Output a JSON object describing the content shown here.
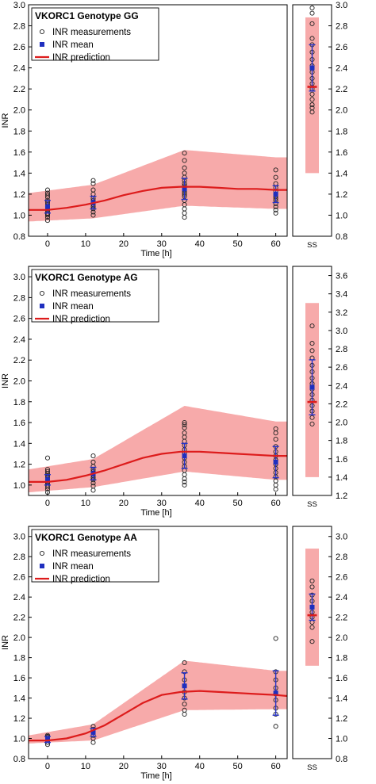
{
  "colors": {
    "band": "#f7aaaa",
    "prediction": "#dd1c1c",
    "mean": "#1f2fbf",
    "measurement": "#222222",
    "errorbar": "#2633c8",
    "axis": "#000000"
  },
  "legend": {
    "measurements": "INR measurements",
    "mean": "INR mean",
    "prediction": "INR prediction"
  },
  "chart_data": [
    {
      "type": "scatter",
      "title": "VKORC1 Genotype GG",
      "xlabel": "Time [h]",
      "ylabel": "INR",
      "xlim": [
        -5,
        63
      ],
      "ylim": [
        0.8,
        3.0
      ],
      "xticks": [
        0,
        10,
        20,
        30,
        40,
        50,
        60
      ],
      "yticks": [
        0.8,
        1.0,
        1.2,
        1.4,
        1.6,
        1.8,
        2.0,
        2.2,
        2.4,
        2.6,
        2.8,
        3.0
      ],
      "ss_ylim": [
        0.8,
        3.0
      ],
      "ss_yticks": [
        0.8,
        1.0,
        1.2,
        1.4,
        1.6,
        1.8,
        2.0,
        2.2,
        2.4,
        2.6,
        2.8,
        3.0
      ],
      "ss_label": "SS",
      "prediction": {
        "x": [
          -5,
          0,
          5,
          10,
          15,
          20,
          25,
          30,
          35,
          40,
          45,
          50,
          55,
          60,
          63
        ],
        "y": [
          1.05,
          1.05,
          1.07,
          1.1,
          1.14,
          1.19,
          1.23,
          1.26,
          1.27,
          1.27,
          1.26,
          1.25,
          1.25,
          1.24,
          1.24
        ]
      },
      "band": {
        "x": [
          -5,
          12,
          36,
          60
        ],
        "lower": [
          0.94,
          0.97,
          1.09,
          1.06
        ],
        "upper": [
          1.21,
          1.29,
          1.62,
          1.55
        ]
      },
      "measurements": [
        {
          "x": 0,
          "y": [
            0.95,
            0.98,
            1.0,
            1.01,
            1.02,
            1.04,
            1.06,
            1.08,
            1.1,
            1.12,
            1.14,
            1.17,
            1.19,
            1.21,
            1.24
          ]
        },
        {
          "x": 12,
          "y": [
            1.0,
            1.03,
            1.06,
            1.08,
            1.1,
            1.12,
            1.14,
            1.16,
            1.2,
            1.24,
            1.3,
            1.33
          ]
        },
        {
          "x": 36,
          "y": [
            0.98,
            1.02,
            1.06,
            1.1,
            1.14,
            1.18,
            1.2,
            1.22,
            1.24,
            1.26,
            1.28,
            1.3,
            1.33,
            1.36,
            1.4,
            1.45,
            1.52,
            1.59
          ]
        },
        {
          "x": 60,
          "y": [
            1.02,
            1.05,
            1.08,
            1.11,
            1.14,
            1.16,
            1.18,
            1.2,
            1.23,
            1.26,
            1.3,
            1.36,
            1.43
          ]
        }
      ],
      "means": [
        {
          "x": 0,
          "y": 1.08,
          "sd": 0.06
        },
        {
          "x": 12,
          "y": 1.12,
          "sd": 0.06
        },
        {
          "x": 36,
          "y": 1.25,
          "sd": 0.1
        },
        {
          "x": 60,
          "y": 1.2,
          "sd": 0.08
        }
      ],
      "ss": {
        "band": [
          1.4,
          2.88
        ],
        "prediction": 2.22,
        "mean": 2.4,
        "sd": 0.22,
        "measurements": [
          1.98,
          2.02,
          2.05,
          2.1,
          2.15,
          2.2,
          2.25,
          2.3,
          2.36,
          2.42,
          2.48,
          2.55,
          2.62,
          2.68,
          2.82,
          2.92,
          2.97
        ]
      }
    },
    {
      "type": "scatter",
      "title": "VKORC1 Genotype AG",
      "xlabel": "Time [h]",
      "ylabel": "INR",
      "xlim": [
        -5,
        63
      ],
      "ylim": [
        0.9,
        3.1
      ],
      "xticks": [
        0,
        10,
        20,
        30,
        40,
        50,
        60
      ],
      "yticks": [
        1.0,
        1.2,
        1.4,
        1.6,
        1.8,
        2.0,
        2.2,
        2.4,
        2.6,
        2.8,
        3.0
      ],
      "ss_ylim": [
        1.2,
        3.7
      ],
      "ss_yticks": [
        1.2,
        1.4,
        1.6,
        1.8,
        2.0,
        2.2,
        2.4,
        2.6,
        2.8,
        3.0,
        3.2,
        3.4,
        3.6
      ],
      "ss_label": "SS",
      "prediction": {
        "x": [
          -5,
          0,
          5,
          10,
          15,
          20,
          25,
          30,
          35,
          40,
          45,
          50,
          55,
          60,
          63
        ],
        "y": [
          1.03,
          1.03,
          1.05,
          1.09,
          1.14,
          1.2,
          1.26,
          1.3,
          1.32,
          1.32,
          1.31,
          1.3,
          1.29,
          1.28,
          1.28
        ]
      },
      "band": {
        "x": [
          -5,
          12,
          36,
          60
        ],
        "lower": [
          0.93,
          0.98,
          1.13,
          1.05
        ],
        "upper": [
          1.15,
          1.25,
          1.76,
          1.61
        ]
      },
      "measurements": [
        {
          "x": 0,
          "y": [
            0.93,
            0.96,
            0.98,
            1.0,
            1.02,
            1.03,
            1.05,
            1.07,
            1.09,
            1.11,
            1.13,
            1.15,
            1.26
          ]
        },
        {
          "x": 12,
          "y": [
            0.95,
            0.99,
            1.02,
            1.05,
            1.07,
            1.09,
            1.11,
            1.13,
            1.15,
            1.18,
            1.22,
            1.28
          ]
        },
        {
          "x": 36,
          "y": [
            1.0,
            1.03,
            1.06,
            1.1,
            1.14,
            1.18,
            1.22,
            1.26,
            1.3,
            1.34,
            1.38,
            1.42,
            1.46,
            1.5,
            1.55,
            1.58,
            1.6
          ]
        },
        {
          "x": 60,
          "y": [
            0.96,
            1.0,
            1.04,
            1.08,
            1.12,
            1.16,
            1.2,
            1.24,
            1.28,
            1.32,
            1.37,
            1.44,
            1.5,
            1.54
          ]
        }
      ],
      "means": [
        {
          "x": 0,
          "y": 1.05,
          "sd": 0.05
        },
        {
          "x": 12,
          "y": 1.11,
          "sd": 0.06
        },
        {
          "x": 36,
          "y": 1.28,
          "sd": 0.12
        },
        {
          "x": 60,
          "y": 1.22,
          "sd": 0.15
        }
      ],
      "ss": {
        "band": [
          1.4,
          3.3
        ],
        "prediction": 2.22,
        "mean": 2.38,
        "sd": 0.3,
        "measurements": [
          1.98,
          2.05,
          2.12,
          2.18,
          2.24,
          2.3,
          2.36,
          2.42,
          2.48,
          2.55,
          2.62,
          2.7,
          2.78,
          2.86,
          3.05
        ]
      }
    },
    {
      "type": "scatter",
      "title": "VKORC1 Genotype AA",
      "xlabel": "Time [h]",
      "ylabel": "INR",
      "xlim": [
        -5,
        63
      ],
      "ylim": [
        0.8,
        3.1
      ],
      "xticks": [
        0,
        10,
        20,
        30,
        40,
        50,
        60
      ],
      "yticks": [
        0.8,
        1.0,
        1.2,
        1.4,
        1.6,
        1.8,
        2.0,
        2.2,
        2.4,
        2.6,
        2.8,
        3.0
      ],
      "ss_ylim": [
        0.8,
        3.1
      ],
      "ss_yticks": [
        0.8,
        1.0,
        1.2,
        1.4,
        1.6,
        1.8,
        2.0,
        2.2,
        2.4,
        2.6,
        2.8,
        3.0
      ],
      "ss_label": "SS",
      "prediction": {
        "x": [
          -5,
          0,
          5,
          10,
          15,
          20,
          25,
          30,
          35,
          40,
          45,
          50,
          55,
          60,
          63
        ],
        "y": [
          0.98,
          0.98,
          1.0,
          1.05,
          1.13,
          1.24,
          1.35,
          1.43,
          1.46,
          1.47,
          1.46,
          1.45,
          1.44,
          1.43,
          1.42
        ]
      },
      "band": {
        "x": [
          -5,
          12,
          36,
          60
        ],
        "lower": [
          0.95,
          0.98,
          1.28,
          1.29
        ],
        "upper": [
          1.03,
          1.14,
          1.77,
          1.67
        ]
      },
      "measurements": [
        {
          "x": 0,
          "y": [
            0.94,
            0.96,
            0.98,
            1.0,
            1.01,
            1.02,
            1.03
          ]
        },
        {
          "x": 12,
          "y": [
            0.96,
            1.0,
            1.03,
            1.06,
            1.09,
            1.12
          ]
        },
        {
          "x": 36,
          "y": [
            1.24,
            1.28,
            1.34,
            1.4,
            1.46,
            1.52,
            1.58,
            1.66,
            1.75
          ]
        },
        {
          "x": 60,
          "y": [
            1.12,
            1.24,
            1.3,
            1.38,
            1.44,
            1.5,
            1.58,
            1.66,
            1.99
          ]
        }
      ],
      "means": [
        {
          "x": 0,
          "y": 0.99,
          "sd": 0.03
        },
        {
          "x": 12,
          "y": 1.06,
          "sd": 0.04
        },
        {
          "x": 36,
          "y": 1.52,
          "sd": 0.13
        },
        {
          "x": 60,
          "y": 1.45,
          "sd": 0.22
        }
      ],
      "ss": {
        "band": [
          1.72,
          2.88
        ],
        "prediction": 2.22,
        "mean": 2.3,
        "sd": 0.13,
        "measurements": [
          1.96,
          2.1,
          2.15,
          2.2,
          2.25,
          2.3,
          2.36,
          2.42,
          2.5,
          2.56
        ]
      }
    }
  ]
}
